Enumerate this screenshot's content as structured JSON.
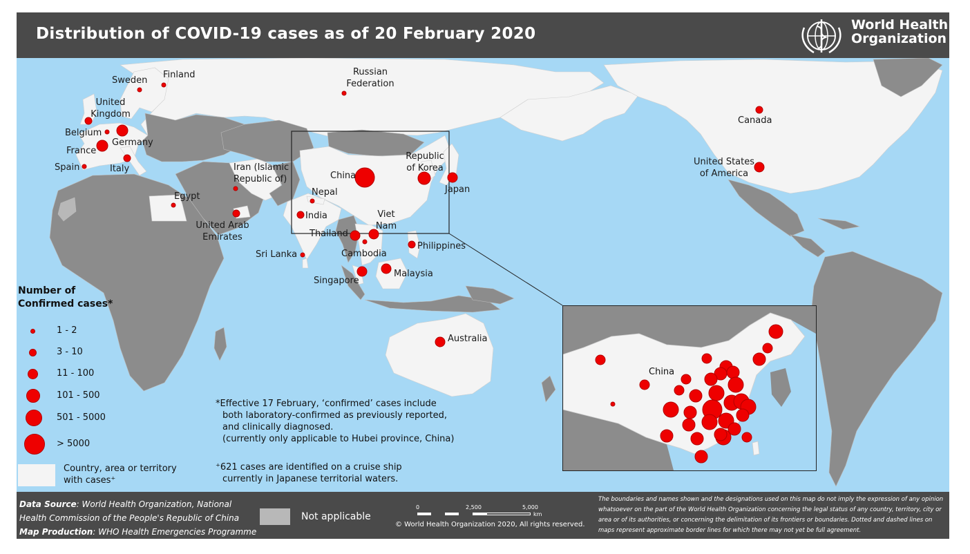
{
  "title": "Distribution of COVID-19 cases as of 20 February 2020",
  "organization": {
    "line1": "World Health",
    "line2": "Organization"
  },
  "colors": {
    "ocean": "#a6d8f5",
    "land_no_cases": "#8c8c8c",
    "land_with_cases": "#f4f4f4",
    "not_applicable": "#b8b8b8",
    "bubble": "#ee0000",
    "bar": "#4a4a4a"
  },
  "countries": [
    {
      "name": "Sweden",
      "size_class": "1 - 2"
    },
    {
      "name": "Finland",
      "size_class": "1 - 2"
    },
    {
      "name": "Russian Federation",
      "size_class": "1 - 2"
    },
    {
      "name": "United Kingdom",
      "size_class": "3 - 10"
    },
    {
      "name": "Belgium",
      "size_class": "1 - 2"
    },
    {
      "name": "Germany",
      "size_class": "11 - 100"
    },
    {
      "name": "France",
      "size_class": "11 - 100"
    },
    {
      "name": "Spain",
      "size_class": "1 - 2"
    },
    {
      "name": "Italy",
      "size_class": "3 - 10"
    },
    {
      "name": "Iran (Islamic Republic of)",
      "size_class": "1 - 2"
    },
    {
      "name": "Egypt",
      "size_class": "1 - 2"
    },
    {
      "name": "United Arab Emirates",
      "size_class": "3 - 10"
    },
    {
      "name": "Nepal",
      "size_class": "1 - 2"
    },
    {
      "name": "India",
      "size_class": "3 - 10"
    },
    {
      "name": "Sri Lanka",
      "size_class": "1 - 2"
    },
    {
      "name": "China",
      "size_class": "> 5000"
    },
    {
      "name": "Republic of Korea",
      "size_class": "101 - 500"
    },
    {
      "name": "Japan",
      "size_class": "11 - 100"
    },
    {
      "name": "Thailand",
      "size_class": "11 - 100"
    },
    {
      "name": "Viet Nam",
      "size_class": "11 - 100"
    },
    {
      "name": "Cambodia",
      "size_class": "1 - 2"
    },
    {
      "name": "Philippines",
      "size_class": "3 - 10"
    },
    {
      "name": "Singapore",
      "size_class": "11 - 100"
    },
    {
      "name": "Malaysia",
      "size_class": "11 - 100"
    },
    {
      "name": "Australia",
      "size_class": "11 - 100"
    },
    {
      "name": "Canada",
      "size_class": "3 - 10"
    },
    {
      "name": "United States of America",
      "size_class": "11 - 100"
    }
  ],
  "labels": {
    "sweden": "Sweden",
    "finland": "Finland",
    "russia": "Russian Federation",
    "uk": "United Kingdom",
    "belgium": "Belgium",
    "germany": "Germany",
    "france": "France",
    "spain": "Spain",
    "italy": "Italy",
    "iran": "Iran (Islamic Republic of)",
    "egypt": "Egypt",
    "uae": "United Arab Emirates",
    "nepal": "Nepal",
    "india": "India",
    "srilanka": "Sri Lanka",
    "china": "China",
    "korea": "Republic of Korea",
    "japan": "Japan",
    "thailand": "Thailand",
    "vietnam": "Viet Nam",
    "cambodia": "Cambodia",
    "philippines": "Philippines",
    "singapore": "Singapore",
    "malaysia": "Malaysia",
    "australia": "Australia",
    "canada": "Canada",
    "usa": "United States of America",
    "inset_china": "China"
  },
  "legend": {
    "title": "Number of Confirmed cases*",
    "classes": [
      "1 - 2",
      "3 - 10",
      "11 - 100",
      "101 - 500",
      "501 - 5000",
      "> 5000"
    ],
    "with_cases": "Country, area or territory with cases⁺"
  },
  "notes": {
    "line1": "*Effective 17 February, ‘confirmed’ cases include",
    "line2": "both laboratory-confirmed as previously reported,",
    "line3": "and clinically diagnosed.",
    "line4": "(currently only applicable to Hubei province, China)",
    "ship1": "⁺621 cases are identified on a cruise ship",
    "ship2": "currently in Japanese territorial waters."
  },
  "footer": {
    "source_label": "Data Source",
    "source_text": ": World Health Organization, National",
    "source_text2": "Health Commission of the People's Republic of China",
    "production_label": "Map Production",
    "production_text": ": WHO Health Emergencies Programme",
    "not_applicable": "Not applicable",
    "scale_ticks": [
      "0",
      "2,500",
      "5,000"
    ],
    "scale_unit": "km",
    "copyright": "© World Health Organization  2020,  All rights reserved.",
    "disclaimer": "The boundaries and names shown and the designations used on this map do not imply the expression of any opinion whatsoever on the part of the World Health Organization concerning the legal status of any country, territory, city or area or of its authorities, or concerning the delimitation of its frontiers or boundaries. Dotted and dashed lines on maps represent approximate border lines for which there may not yet be full agreement."
  },
  "icons": {
    "logo": "who-emblem-icon",
    "bubble": "case-bubble-icon"
  }
}
